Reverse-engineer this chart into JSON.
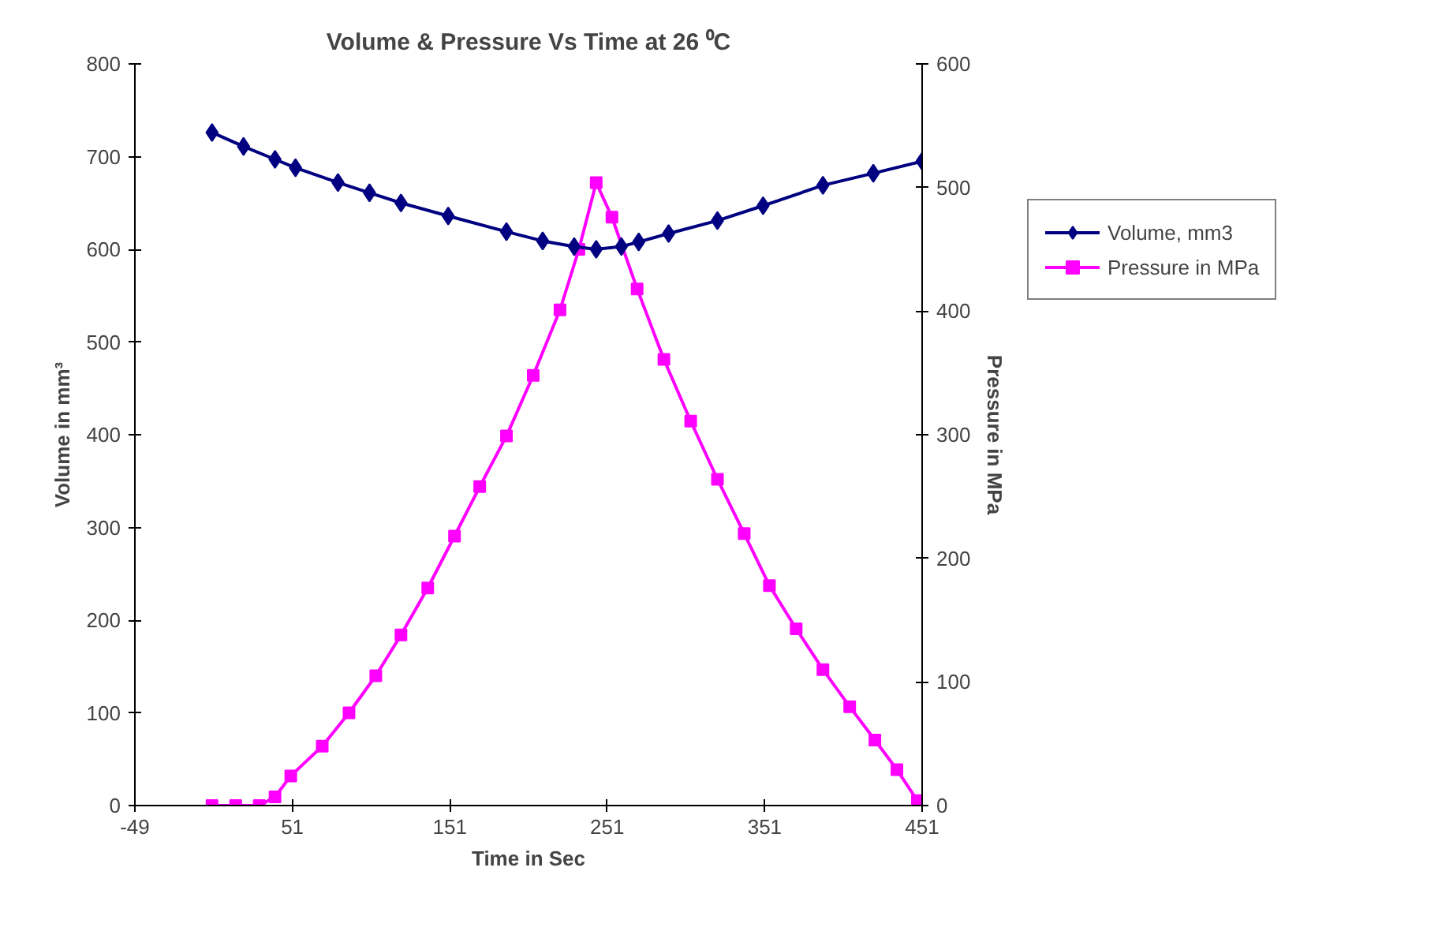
{
  "chart_data": {
    "type": "line",
    "title": "Volume & Pressure Vs Time at 26 ⁰C",
    "xlabel": "Time in Sec",
    "ylabel": "Volume in mm³",
    "y2label": "Pressure in MPa",
    "xlim": [
      -49,
      451
    ],
    "xticks": [
      -49,
      51,
      151,
      251,
      351,
      451
    ],
    "ylim": [
      0,
      800
    ],
    "yticks": [
      0,
      100,
      200,
      300,
      400,
      500,
      600,
      700,
      800
    ],
    "y2lim": [
      0,
      600
    ],
    "y2ticks": [
      0,
      100,
      200,
      300,
      400,
      500,
      600
    ],
    "grid": false,
    "legend": "right",
    "line_style": "solid",
    "series": [
      {
        "name": "Volume, mm3",
        "color": "#000080",
        "marker": "diamond",
        "x": [
          0,
          20,
          40,
          53,
          80,
          100,
          120,
          150,
          187,
          210,
          230,
          244,
          260,
          271,
          290,
          321,
          350,
          388,
          420,
          451
        ],
        "values": [
          726,
          711,
          697,
          688,
          672,
          661,
          650,
          636,
          619,
          609,
          603,
          600,
          603,
          608,
          617,
          631,
          647,
          669,
          682,
          695
        ]
      },
      {
        "name": "Pressure in MPa",
        "color": "#ff00ff",
        "marker": "square",
        "axis": "y2",
        "x": [
          0,
          15,
          30,
          40,
          50,
          70,
          87,
          104,
          120,
          137,
          154,
          170,
          187,
          204,
          221,
          233,
          244,
          254,
          270,
          287,
          304,
          321,
          338,
          354,
          371,
          388,
          405,
          421,
          435,
          448,
          451
        ],
        "values": [
          0,
          0,
          0,
          7,
          24,
          48,
          75,
          105,
          138,
          176,
          218,
          258,
          299,
          348,
          401,
          450,
          504,
          476,
          418,
          361,
          311,
          264,
          220,
          178,
          143,
          110,
          80,
          53,
          29,
          4,
          0
        ]
      }
    ]
  }
}
